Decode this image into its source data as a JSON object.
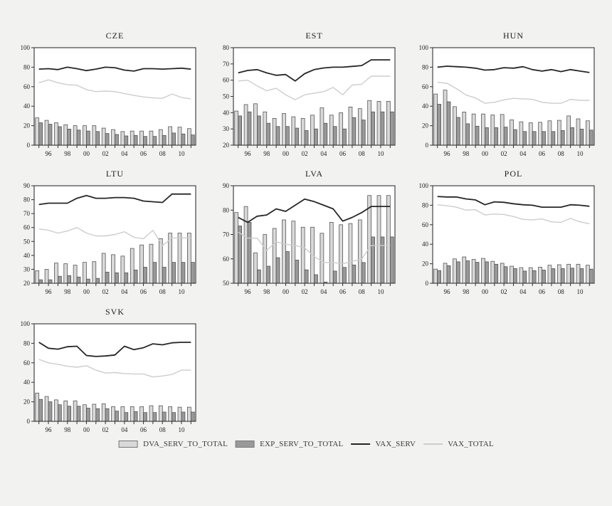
{
  "figure": {
    "background": "#f2f2f1",
    "plot_background": "#ffffff",
    "frame_color": "#333333"
  },
  "colors": {
    "dva_bar_fill": "#d9d9d9",
    "exp_bar_fill": "#999999",
    "bar_border": "#4d4d4d",
    "vax_serv_line": "#262626",
    "vax_total_line": "#cdcdcd",
    "text": "#222222"
  },
  "x_axis": {
    "years": [
      1995,
      1996,
      1997,
      1998,
      1999,
      2000,
      2001,
      2002,
      2003,
      2004,
      2005,
      2006,
      2007,
      2008,
      2009,
      2010,
      2011
    ],
    "tick_labels": [
      "96",
      "98",
      "00",
      "02",
      "04",
      "06",
      "08",
      "10"
    ],
    "tick_label_indices": [
      1,
      3,
      5,
      7,
      9,
      11,
      13,
      15
    ]
  },
  "legend": {
    "items": [
      {
        "label": "DVA_SERV_TO_TOTAL",
        "swatch": "box",
        "color": "#d9d9d9"
      },
      {
        "label": "EXP_SERV_TO_TOTAL",
        "swatch": "box",
        "color": "#999999"
      },
      {
        "label": "VAX_SERV",
        "swatch": "line",
        "color": "#262626"
      },
      {
        "label": "VAX_TOTAL",
        "swatch": "line",
        "color": "#cdcdcd"
      }
    ]
  },
  "chart_data": [
    {
      "type": "bar+line",
      "title": "CZE",
      "ylim": [
        0,
        100
      ],
      "yticks": [
        0,
        20,
        40,
        60,
        80,
        100
      ],
      "series": [
        {
          "name": "DVA_SERV_TO_TOTAL",
          "kind": "bar",
          "values": [
            28,
            25.5,
            23,
            21,
            20,
            20,
            20,
            17.5,
            16,
            14,
            14.5,
            14.5,
            14.5,
            16,
            19,
            18.5,
            17
          ]
        },
        {
          "name": "EXP_SERV_TO_TOTAL",
          "kind": "bar",
          "values": [
            23,
            21.5,
            19,
            16.5,
            15.5,
            14.5,
            14,
            12,
            11,
            9.5,
            10,
            9,
            9,
            10,
            12.5,
            11.5,
            10.5
          ]
        },
        {
          "name": "VAX_SERV",
          "kind": "line",
          "values": [
            78,
            78.5,
            77.5,
            80,
            78.5,
            76.5,
            78,
            80,
            79.5,
            77,
            76,
            78.5,
            78.5,
            78,
            78.5,
            79,
            78
          ]
        },
        {
          "name": "VAX_TOTAL",
          "kind": "line",
          "values": [
            64,
            67,
            64,
            62,
            61.5,
            57,
            55,
            55.5,
            55,
            53,
            51,
            49.5,
            48.5,
            48,
            52.5,
            49,
            47.5
          ]
        }
      ]
    },
    {
      "type": "bar+line",
      "title": "EST",
      "ylim": [
        20,
        80
      ],
      "yticks": [
        20,
        30,
        40,
        50,
        60,
        70,
        80
      ],
      "series": [
        {
          "name": "DVA_SERV_TO_TOTAL",
          "kind": "bar",
          "values": [
            41,
            45,
            45.5,
            40.5,
            36.5,
            39.5,
            37.5,
            36.5,
            38.5,
            43,
            38.5,
            40,
            43.5,
            42.5,
            47.5,
            47,
            47
          ]
        },
        {
          "name": "EXP_SERV_TO_TOTAL",
          "kind": "bar",
          "values": [
            38,
            40.5,
            38,
            33.5,
            31.5,
            31.5,
            30.5,
            29,
            30,
            33.5,
            31.5,
            30,
            37,
            35.5,
            40.5,
            40.5,
            40.5
          ]
        },
        {
          "name": "VAX_SERV",
          "kind": "line",
          "values": [
            64.5,
            66,
            66.5,
            64.5,
            63,
            63.5,
            59.5,
            64,
            66.5,
            67.5,
            68,
            68,
            68.5,
            69,
            72.5,
            72.5,
            72.5
          ]
        },
        {
          "name": "VAX_TOTAL",
          "kind": "line",
          "values": [
            59.5,
            60,
            56.5,
            53.5,
            55,
            51,
            48,
            51,
            52,
            53,
            55.5,
            51,
            57,
            57.5,
            62.5,
            62.5,
            62.5
          ]
        }
      ]
    },
    {
      "type": "bar+line",
      "title": "HUN",
      "ylim": [
        0,
        100
      ],
      "yticks": [
        0,
        20,
        40,
        60,
        80,
        100
      ],
      "series": [
        {
          "name": "DVA_SERV_TO_TOTAL",
          "kind": "bar",
          "values": [
            52.5,
            56.5,
            39.5,
            34,
            32,
            32,
            31,
            31.5,
            26,
            24,
            23,
            23.5,
            25,
            25.5,
            30,
            27,
            25
          ]
        },
        {
          "name": "EXP_SERV_TO_TOTAL",
          "kind": "bar",
          "values": [
            42,
            44.5,
            28.5,
            22,
            19.5,
            18,
            18,
            18.5,
            16,
            14,
            14,
            14,
            14,
            15,
            18,
            16.5,
            15.5
          ]
        },
        {
          "name": "VAX_SERV",
          "kind": "line",
          "values": [
            80,
            81,
            80.5,
            80,
            79,
            77,
            77.5,
            79.5,
            79,
            80.5,
            77.5,
            76,
            77.5,
            75.5,
            77.5,
            76,
            74.5
          ]
        },
        {
          "name": "VAX_TOTAL",
          "kind": "line",
          "values": [
            64.5,
            63.5,
            58,
            51.5,
            48.5,
            43,
            44,
            46.5,
            48,
            47.5,
            47,
            44,
            43,
            43,
            47,
            46,
            46
          ]
        }
      ]
    },
    {
      "type": "bar+line",
      "title": "LTU",
      "ylim": [
        20,
        90
      ],
      "yticks": [
        20,
        30,
        40,
        50,
        60,
        70,
        80,
        90
      ],
      "series": [
        {
          "name": "DVA_SERV_TO_TOTAL",
          "kind": "bar",
          "values": [
            29,
            30,
            34.5,
            34,
            33,
            35,
            35.5,
            41.5,
            40.5,
            39.5,
            45,
            47.5,
            48,
            52,
            56,
            56,
            56
          ]
        },
        {
          "name": "EXP_SERV_TO_TOTAL",
          "kind": "bar",
          "values": [
            22.5,
            22.5,
            25,
            25.5,
            24.5,
            23,
            23.5,
            28,
            27.5,
            27.5,
            29.5,
            31.5,
            35,
            31.5,
            35,
            35,
            35
          ]
        },
        {
          "name": "VAX_SERV",
          "kind": "line",
          "values": [
            76.5,
            77.5,
            77.5,
            77.5,
            81,
            83,
            81,
            81,
            81.5,
            81.5,
            81,
            79,
            78.5,
            78,
            84,
            84,
            84
          ]
        },
        {
          "name": "VAX_TOTAL",
          "kind": "line",
          "values": [
            59,
            58,
            56,
            57.5,
            60,
            56,
            54,
            54,
            55,
            57,
            53,
            52,
            58,
            47,
            52.5,
            52.5,
            52.5
          ]
        }
      ]
    },
    {
      "type": "bar+line",
      "title": "LVA",
      "ylim": [
        50,
        90
      ],
      "yticks": [
        50,
        60,
        70,
        80,
        90
      ],
      "series": [
        {
          "name": "DVA_SERV_TO_TOTAL",
          "kind": "bar",
          "values": [
            79,
            81.5,
            62.5,
            70,
            72.5,
            76,
            75.5,
            73,
            73,
            70.5,
            75,
            74,
            74.5,
            76,
            86,
            86,
            86
          ]
        },
        {
          "name": "EXP_SERV_TO_TOTAL",
          "kind": "bar",
          "values": [
            73.5,
            75,
            55.5,
            57,
            60.5,
            63,
            59.5,
            55.5,
            53.5,
            50.5,
            55,
            56.5,
            57.5,
            58.5,
            69,
            69,
            69
          ]
        },
        {
          "name": "VAX_SERV",
          "kind": "line",
          "values": [
            77,
            75,
            77.5,
            78,
            80.5,
            79.5,
            82,
            84.5,
            83.5,
            82,
            80.5,
            75.5,
            77,
            79,
            81.5,
            81.5,
            81.5
          ]
        },
        {
          "name": "VAX_TOTAL",
          "kind": "line",
          "values": [
            71,
            68.5,
            68.5,
            63.5,
            67,
            66,
            65.5,
            64.5,
            61,
            58.5,
            58.5,
            58,
            59,
            60,
            65.5,
            65.5,
            65.5
          ]
        }
      ]
    },
    {
      "type": "bar+line",
      "title": "POL",
      "ylim": [
        0,
        100
      ],
      "yticks": [
        0,
        20,
        40,
        60,
        80,
        100
      ],
      "series": [
        {
          "name": "DVA_SERV_TO_TOTAL",
          "kind": "bar",
          "values": [
            14.5,
            20.5,
            25,
            27,
            24.5,
            25.5,
            22.5,
            20.5,
            17.5,
            16,
            16,
            16.5,
            18.5,
            19,
            19.5,
            19.5,
            18.5
          ]
        },
        {
          "name": "EXP_SERV_TO_TOTAL",
          "kind": "bar",
          "values": [
            13,
            18,
            22,
            23,
            21.5,
            22,
            19.5,
            17,
            15,
            12.5,
            13,
            13.5,
            15,
            15,
            15.5,
            15,
            14.5
          ]
        },
        {
          "name": "VAX_SERV",
          "kind": "line",
          "values": [
            89,
            88.5,
            88.5,
            86.5,
            85.5,
            80.5,
            83.5,
            83,
            81.5,
            80.5,
            80,
            78,
            78,
            78,
            80.5,
            80,
            79
          ]
        },
        {
          "name": "VAX_TOTAL",
          "kind": "line",
          "values": [
            80.5,
            79.5,
            78,
            75,
            75.5,
            70,
            71,
            70.5,
            68.5,
            65.5,
            65,
            66,
            63,
            62.5,
            66.5,
            63,
            61
          ]
        }
      ]
    },
    {
      "type": "bar+line",
      "title": "SVK",
      "ylim": [
        0,
        100
      ],
      "yticks": [
        0,
        20,
        40,
        60,
        80,
        100
      ],
      "series": [
        {
          "name": "DVA_SERV_TO_TOTAL",
          "kind": "bar",
          "values": [
            29,
            25.5,
            22,
            21,
            21,
            17,
            17.5,
            18,
            15,
            15,
            15,
            15,
            16,
            16,
            15,
            14.5,
            14.5
          ]
        },
        {
          "name": "EXP_SERV_TO_TOTAL",
          "kind": "bar",
          "values": [
            22.5,
            20,
            17,
            15.5,
            15.5,
            13.5,
            13,
            13,
            10.5,
            9,
            10,
            9,
            9,
            9.5,
            9,
            9.5,
            9.5
          ]
        },
        {
          "name": "VAX_SERV",
          "kind": "line",
          "values": [
            81,
            75,
            74,
            76.5,
            77,
            67.5,
            66.5,
            67,
            68,
            77,
            73.5,
            75.5,
            79.5,
            78.5,
            80.5,
            81,
            81
          ]
        },
        {
          "name": "VAX_TOTAL",
          "kind": "line",
          "values": [
            63.5,
            60,
            58.5,
            56.5,
            55.5,
            57,
            52.5,
            49.5,
            50,
            49,
            48.5,
            48.5,
            45.5,
            46.5,
            48,
            52.5,
            52.5
          ]
        }
      ]
    }
  ]
}
